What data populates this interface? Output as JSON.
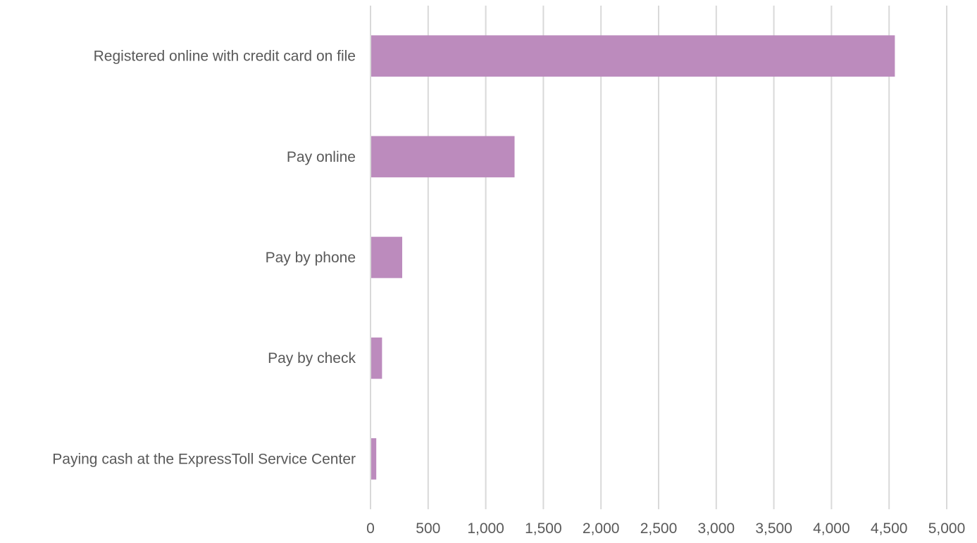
{
  "chart_data": {
    "type": "bar",
    "orientation": "horizontal",
    "categories": [
      "Registered online with credit card on file",
      "Pay online",
      "Pay by phone",
      "Pay by check",
      "Paying cash at the ExpressToll Service Center"
    ],
    "values": [
      4550,
      1250,
      275,
      100,
      50
    ],
    "xlim": [
      0,
      5000
    ],
    "x_ticks": [
      0,
      500,
      1000,
      1500,
      2000,
      2500,
      3000,
      3500,
      4000,
      4500,
      5000
    ],
    "x_tick_labels": [
      "0",
      "500",
      "1,000",
      "1,500",
      "2,000",
      "2,500",
      "3,000",
      "3,500",
      "4,000",
      "4,500",
      "5,000"
    ],
    "title": "",
    "xlabel": "",
    "ylabel": "",
    "grid": "vertical",
    "legend": "none",
    "bar_color": "#bc8bbd",
    "grid_color": "#d9d9d9",
    "label_color": "#595959"
  }
}
